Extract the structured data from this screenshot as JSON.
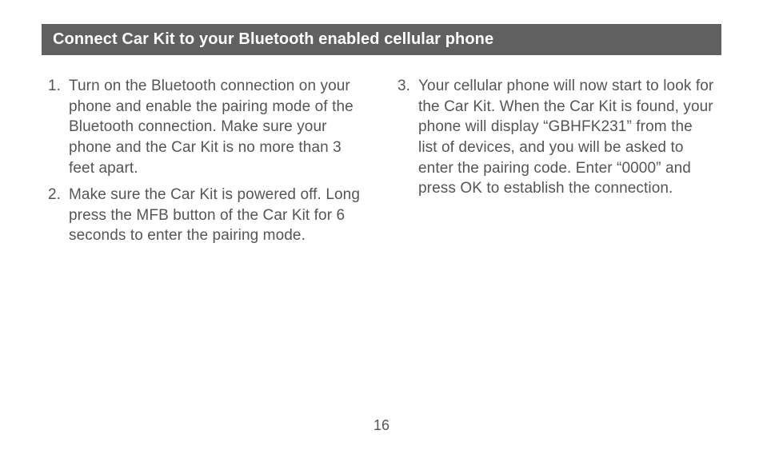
{
  "heading": "Connect Car Kit to your Bluetooth enabled cellular phone",
  "columns": {
    "left": {
      "start": 1,
      "items": [
        "Turn on the Bluetooth connection on your phone and enable the pairing mode of the Bluetooth connection.  Make sure your phone and the Car Kit is no more than 3 feet apart.",
        "Make sure the Car Kit is powered off.  Long press the MFB button of the Car Kit for 6 seconds to enter the pairing mode."
      ]
    },
    "right": {
      "start": 3,
      "items": [
        "Your cellular phone will now start to look for the Car Kit.  When the Car Kit is found, your phone will display “GBHFK231” from the list of devices, and you will be asked to enter the pairing code.  Enter “0000” and press OK to establish the connection."
      ]
    }
  },
  "pageNumber": "16",
  "colors": {
    "headingBg": "#606060",
    "headingText": "#ffffff",
    "bodyText": "#555555",
    "pageBg": "#ffffff"
  },
  "typography": {
    "headingFontSize": 20,
    "headingWeight": 700,
    "bodyFontSize": 19,
    "bodyLineHeight": 1.35,
    "pageNumberFontSize": 18
  }
}
